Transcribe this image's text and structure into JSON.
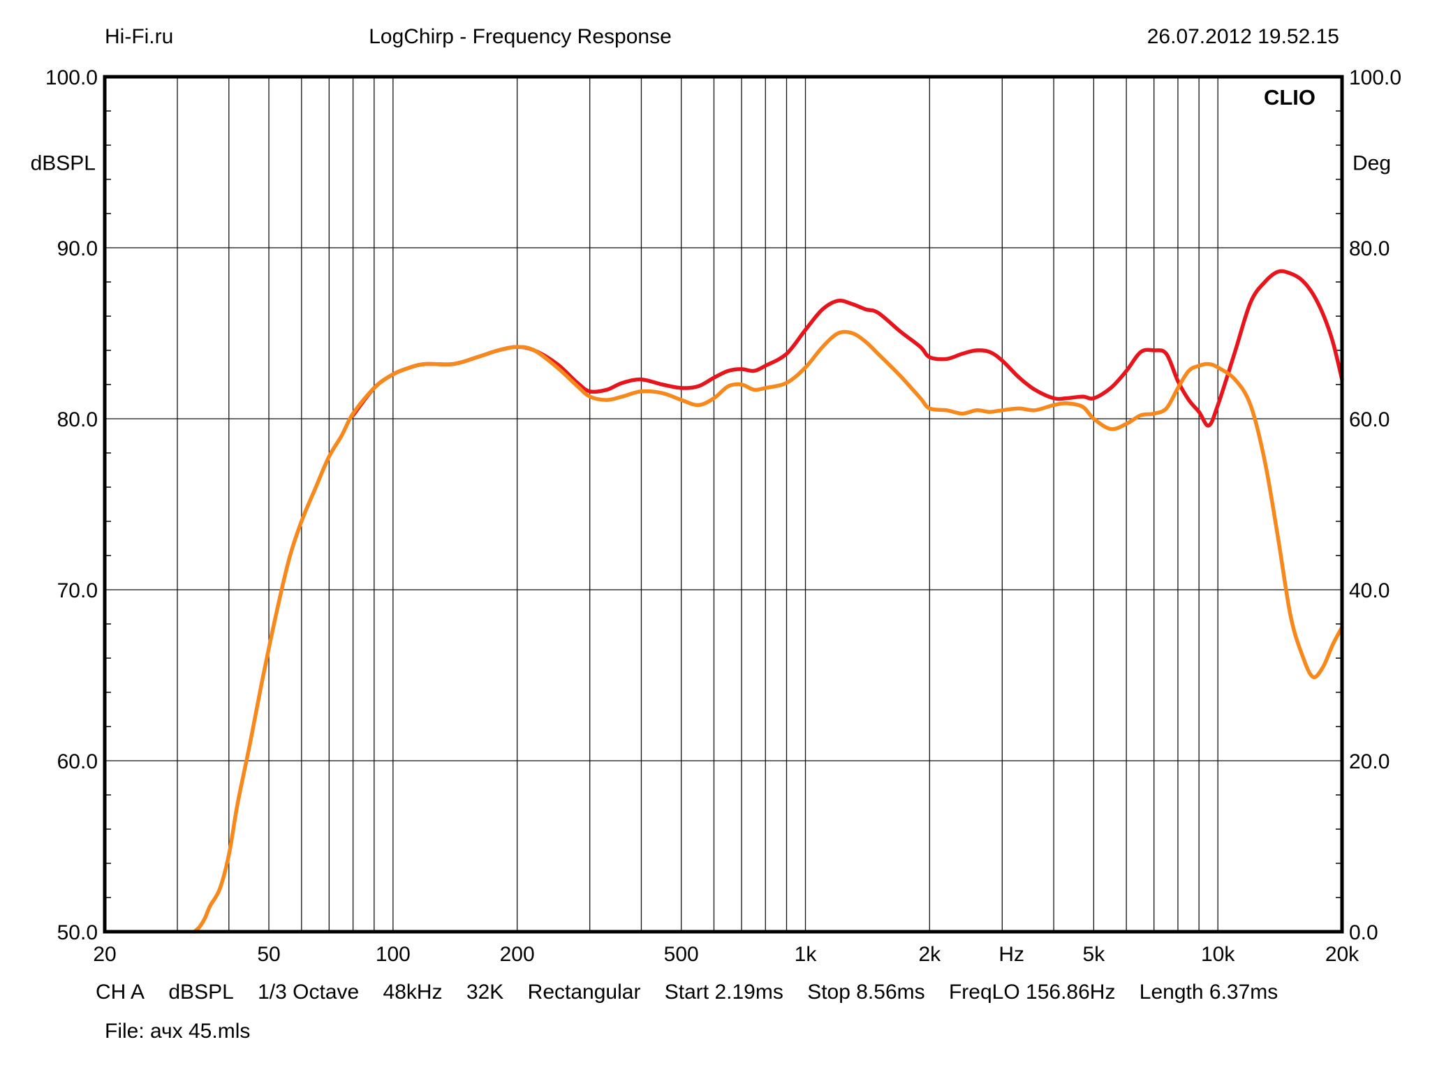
{
  "header": {
    "left": "Hi-Fi.ru",
    "center": "LogChirp - Frequency Response",
    "right": "26.07.2012 19.52.15"
  },
  "info": {
    "channel": "CH A",
    "unit": "dBSPL",
    "smoothing": "1/3 Octave",
    "sample_rate": "48kHz",
    "size": "32K",
    "window": "Rectangular",
    "start": "Start 2.19ms",
    "stop": "Stop 8.56ms",
    "freqlo": "FreqLO 156.86Hz",
    "length": "Length 6.37ms"
  },
  "file": "File: ачх 45.mls",
  "chart_data": {
    "type": "line",
    "logo": "CLIO",
    "xlabel": "Hz",
    "ylabel": "dBSPL",
    "y2label": "Deg",
    "x_scale": "log",
    "xlim": [
      20,
      20000
    ],
    "ylim": [
      50,
      100
    ],
    "y2lim": [
      0,
      100
    ],
    "grid": true,
    "x_ticks": [
      {
        "value": 20,
        "label": "20"
      },
      {
        "value": 50,
        "label": "50"
      },
      {
        "value": 100,
        "label": "100"
      },
      {
        "value": 200,
        "label": "200"
      },
      {
        "value": 500,
        "label": "500"
      },
      {
        "value": 1000,
        "label": "1k"
      },
      {
        "value": 2000,
        "label": "2k"
      },
      {
        "value": 5000,
        "label": "5k"
      },
      {
        "value": 10000,
        "label": "10k"
      },
      {
        "value": 20000,
        "label": "20k"
      }
    ],
    "x_unit_label_at": 3160,
    "y_ticks": [
      {
        "value": 50,
        "label": "50.0"
      },
      {
        "value": 60,
        "label": "60.0"
      },
      {
        "value": 70,
        "label": "70.0"
      },
      {
        "value": 80,
        "label": "80.0"
      },
      {
        "value": 90,
        "label": "90.0"
      },
      {
        "value": 100,
        "label": "100.0"
      }
    ],
    "y2_ticks": [
      {
        "value": 0,
        "label": "0.0"
      },
      {
        "value": 20,
        "label": "20.0"
      },
      {
        "value": 40,
        "label": "40.0"
      },
      {
        "value": 60,
        "label": "60.0"
      },
      {
        "value": 80,
        "label": "80.0"
      },
      {
        "value": 100,
        "label": "100.0"
      }
    ],
    "series": [
      {
        "color": "#e8141c",
        "x": [
          80,
          90,
          100,
          110,
          120,
          140,
          160,
          180,
          200,
          220,
          250,
          280,
          300,
          330,
          360,
          400,
          450,
          500,
          550,
          600,
          650,
          700,
          750,
          800,
          900,
          1000,
          1100,
          1200,
          1300,
          1400,
          1500,
          1700,
          1900,
          2000,
          2200,
          2400,
          2600,
          2800,
          3000,
          3300,
          3600,
          4000,
          4300,
          4700,
          5000,
          5500,
          6000,
          6500,
          7000,
          7500,
          8000,
          8500,
          9000,
          9500,
          10000,
          11000,
          12000,
          13000,
          14000,
          15000,
          16000,
          17000,
          18000,
          19000,
          20000
        ],
        "values": [
          80.2,
          81.8,
          82.6,
          83.0,
          83.2,
          83.2,
          83.6,
          84.0,
          84.2,
          84.0,
          83.2,
          82.1,
          81.6,
          81.7,
          82.1,
          82.3,
          82.0,
          81.8,
          81.9,
          82.4,
          82.8,
          82.9,
          82.8,
          83.1,
          83.8,
          85.2,
          86.4,
          86.9,
          86.7,
          86.4,
          86.2,
          85.1,
          84.2,
          83.6,
          83.5,
          83.8,
          84.0,
          83.9,
          83.4,
          82.4,
          81.7,
          81.2,
          81.2,
          81.3,
          81.2,
          81.8,
          82.8,
          83.9,
          84.0,
          83.8,
          82.2,
          81.1,
          80.4,
          79.6,
          80.8,
          83.9,
          86.8,
          88.0,
          88.6,
          88.5,
          88.1,
          87.3,
          86.1,
          84.5,
          82.3
        ]
      },
      {
        "color": "#f7881c",
        "x": [
          33,
          34,
          35,
          36,
          38,
          40,
          42,
          45,
          48,
          52,
          56,
          60,
          65,
          70,
          75,
          80,
          90,
          100,
          110,
          120,
          140,
          160,
          180,
          200,
          220,
          250,
          280,
          300,
          330,
          360,
          400,
          450,
          500,
          550,
          600,
          650,
          700,
          750,
          800,
          900,
          1000,
          1100,
          1200,
          1300,
          1400,
          1500,
          1700,
          1900,
          2000,
          2200,
          2400,
          2600,
          2800,
          3000,
          3300,
          3600,
          4000,
          4300,
          4700,
          5000,
          5500,
          6000,
          6500,
          7000,
          7500,
          8000,
          8500,
          9000,
          9500,
          10000,
          11000,
          12000,
          13000,
          14000,
          15000,
          16000,
          17000,
          18000,
          19000,
          20000
        ],
        "values": [
          50.0,
          50.3,
          50.8,
          51.5,
          52.5,
          54.5,
          57.5,
          61.0,
          64.5,
          68.5,
          71.8,
          74.0,
          76.0,
          77.8,
          79.0,
          80.3,
          81.8,
          82.6,
          83.0,
          83.2,
          83.2,
          83.6,
          84.0,
          84.2,
          84.0,
          83.0,
          81.9,
          81.3,
          81.1,
          81.3,
          81.6,
          81.5,
          81.1,
          80.8,
          81.2,
          81.9,
          82.0,
          81.7,
          81.8,
          82.1,
          83.0,
          84.2,
          85.0,
          85.0,
          84.5,
          83.8,
          82.5,
          81.2,
          80.6,
          80.5,
          80.3,
          80.5,
          80.4,
          80.5,
          80.6,
          80.5,
          80.8,
          80.9,
          80.7,
          80.0,
          79.4,
          79.7,
          80.2,
          80.3,
          80.6,
          81.8,
          82.8,
          83.1,
          83.2,
          83.0,
          82.3,
          80.8,
          77.5,
          73.0,
          68.5,
          66.2,
          64.9,
          65.5,
          66.8,
          67.8
        ]
      }
    ]
  }
}
